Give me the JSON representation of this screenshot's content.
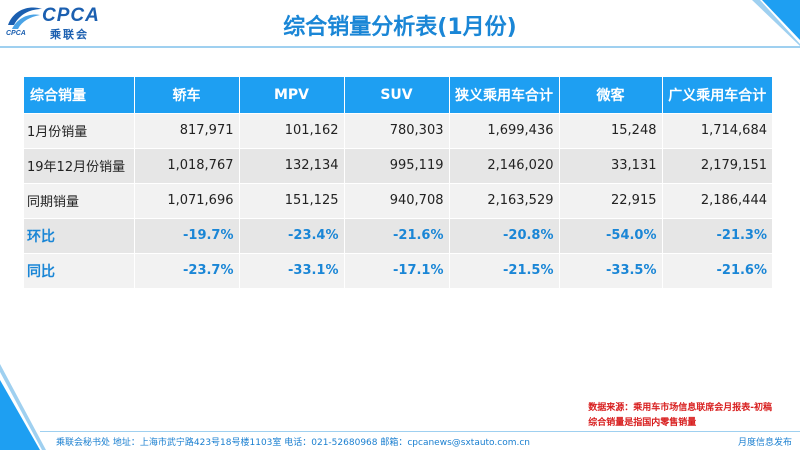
{
  "logo": {
    "main": "CPCA",
    "sub": "乘联会",
    "tag": "CPCA"
  },
  "title": "综合销量分析表(1月份)",
  "table": {
    "headers": [
      "综合销量",
      "轿车",
      "MPV",
      "SUV",
      "狭义乘用车合计",
      "微客",
      "广义乘用车合计"
    ],
    "rows": [
      {
        "label": "1月份销量",
        "values": [
          "817,971",
          "101,162",
          "780,303",
          "1,699,436",
          "15,248",
          "1,714,684"
        ]
      },
      {
        "label": "19年12月份销量",
        "values": [
          "1,018,767",
          "132,134",
          "995,119",
          "2,146,020",
          "33,131",
          "2,179,151"
        ]
      },
      {
        "label": "同期销量",
        "values": [
          "1,071,696",
          "151,125",
          "940,708",
          "2,163,529",
          "22,915",
          "2,186,444"
        ]
      },
      {
        "label": "环比",
        "values": [
          "-19.7%",
          "-23.4%",
          "-21.6%",
          "-20.8%",
          "-54.0%",
          "-21.3%"
        ]
      },
      {
        "label": "同比",
        "values": [
          "-23.7%",
          "-33.1%",
          "-17.1%",
          "-21.5%",
          "-33.5%",
          "-21.6%"
        ]
      }
    ]
  },
  "notes": {
    "source": "数据来源：乘用车市场信息联席会月报表-初稿",
    "definition": "综合销量是指国内零售销量"
  },
  "footer": {
    "info": "乘联会秘书处    地址：上海市武宁路423号18号楼1103室  电话：021-52680968    邮箱：cpcanews@sxtauto.com.cn",
    "right": "月度信息发布"
  },
  "colors": {
    "header_blue": "#1e9ff2",
    "title_blue": "#1a86d6",
    "note_red": "#d81e1e"
  }
}
